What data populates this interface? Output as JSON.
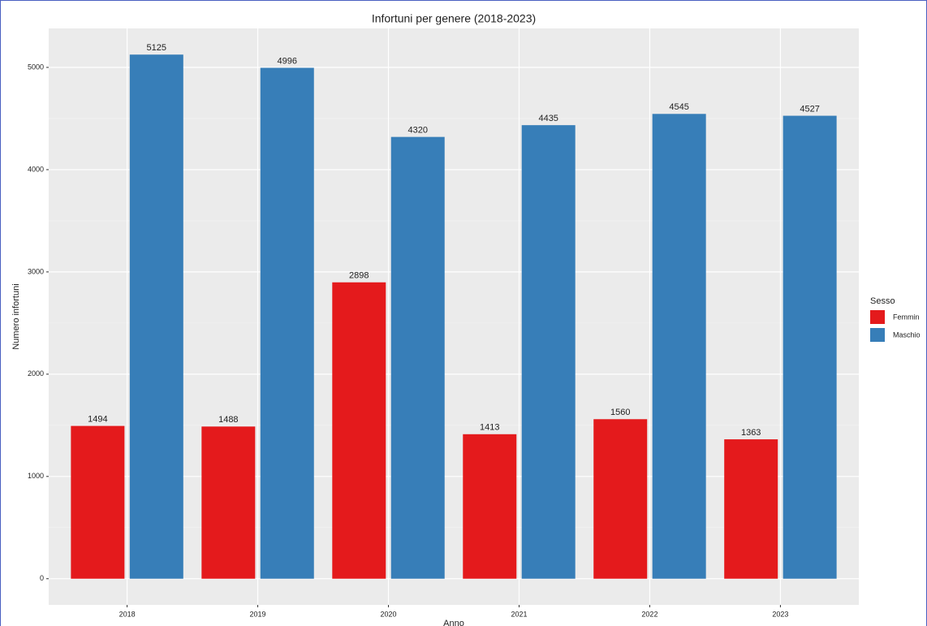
{
  "chart_data": {
    "type": "bar",
    "title": "Infortuni per genere (2018-2023)",
    "x_label": "Anno",
    "y_label": "Numero infortuni",
    "legend_title": "Sesso",
    "categories": [
      "2018",
      "2019",
      "2020",
      "2021",
      "2022",
      "2023"
    ],
    "series": [
      {
        "name": "Femmin",
        "color": "#e41a1c",
        "values": [
          1494,
          1488,
          2898,
          1413,
          1560,
          1363
        ]
      },
      {
        "name": "Maschio",
        "color": "#377eb8",
        "values": [
          5125,
          4996,
          4320,
          4435,
          4545,
          4527
        ]
      }
    ],
    "ylim": [
      -256,
      5381
    ],
    "yticks": [
      0,
      1000,
      2000,
      3000,
      4000,
      5000
    ],
    "grid": true
  }
}
